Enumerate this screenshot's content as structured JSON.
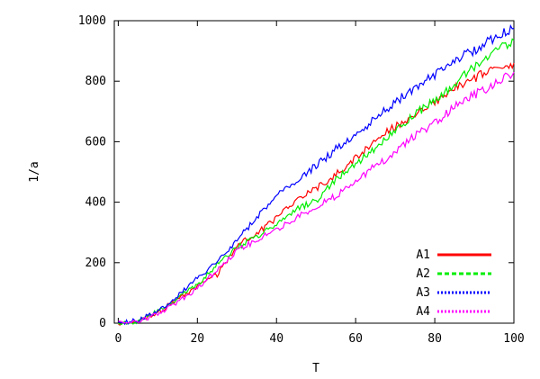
{
  "chart_data": {
    "type": "line",
    "title": "",
    "xlabel": "T",
    "ylabel": "1/a",
    "xlim": [
      -1,
      100
    ],
    "ylim": [
      0,
      1000
    ],
    "xticks": [
      0,
      20,
      40,
      60,
      80,
      100
    ],
    "yticks": [
      0,
      200,
      400,
      600,
      800,
      1000
    ],
    "grid": false,
    "legend_position": "bottom-right",
    "series": [
      {
        "name": "A1",
        "color": "#ff0000",
        "dash": "solid",
        "x": [
          0,
          5,
          10,
          15,
          20,
          25,
          30,
          35,
          40,
          45,
          50,
          55,
          60,
          65,
          70,
          75,
          80,
          85,
          90,
          95,
          100
        ],
        "y": [
          0,
          5,
          35,
          80,
          120,
          160,
          255,
          300,
          345,
          410,
          445,
          490,
          545,
          605,
          650,
          690,
          730,
          780,
          810,
          840,
          860
        ]
      },
      {
        "name": "A2",
        "color": "#00ee00",
        "dash": "dashed",
        "x": [
          0,
          5,
          10,
          15,
          20,
          25,
          30,
          35,
          40,
          45,
          50,
          55,
          60,
          65,
          70,
          75,
          80,
          85,
          90,
          95,
          100
        ],
        "y": [
          0,
          5,
          40,
          85,
          125,
          195,
          250,
          285,
          325,
          375,
          405,
          475,
          525,
          580,
          640,
          690,
          740,
          790,
          850,
          900,
          935
        ]
      },
      {
        "name": "A3",
        "color": "#0000ff",
        "dash": "dotted",
        "x": [
          0,
          5,
          10,
          15,
          20,
          25,
          30,
          35,
          40,
          45,
          50,
          55,
          60,
          65,
          70,
          75,
          80,
          85,
          90,
          95,
          100
        ],
        "y": [
          0,
          10,
          40,
          90,
          150,
          200,
          275,
          350,
          420,
          470,
          520,
          575,
          620,
          680,
          730,
          780,
          820,
          870,
          900,
          945,
          975
        ]
      },
      {
        "name": "A4",
        "color": "#ff00ff",
        "dash": "dotted",
        "x": [
          0,
          5,
          10,
          15,
          20,
          25,
          30,
          35,
          40,
          45,
          50,
          55,
          60,
          65,
          70,
          75,
          80,
          85,
          90,
          95,
          100
        ],
        "y": [
          0,
          5,
          30,
          70,
          115,
          175,
          240,
          275,
          310,
          350,
          385,
          420,
          470,
          520,
          565,
          620,
          660,
          715,
          755,
          790,
          830
        ]
      }
    ]
  }
}
